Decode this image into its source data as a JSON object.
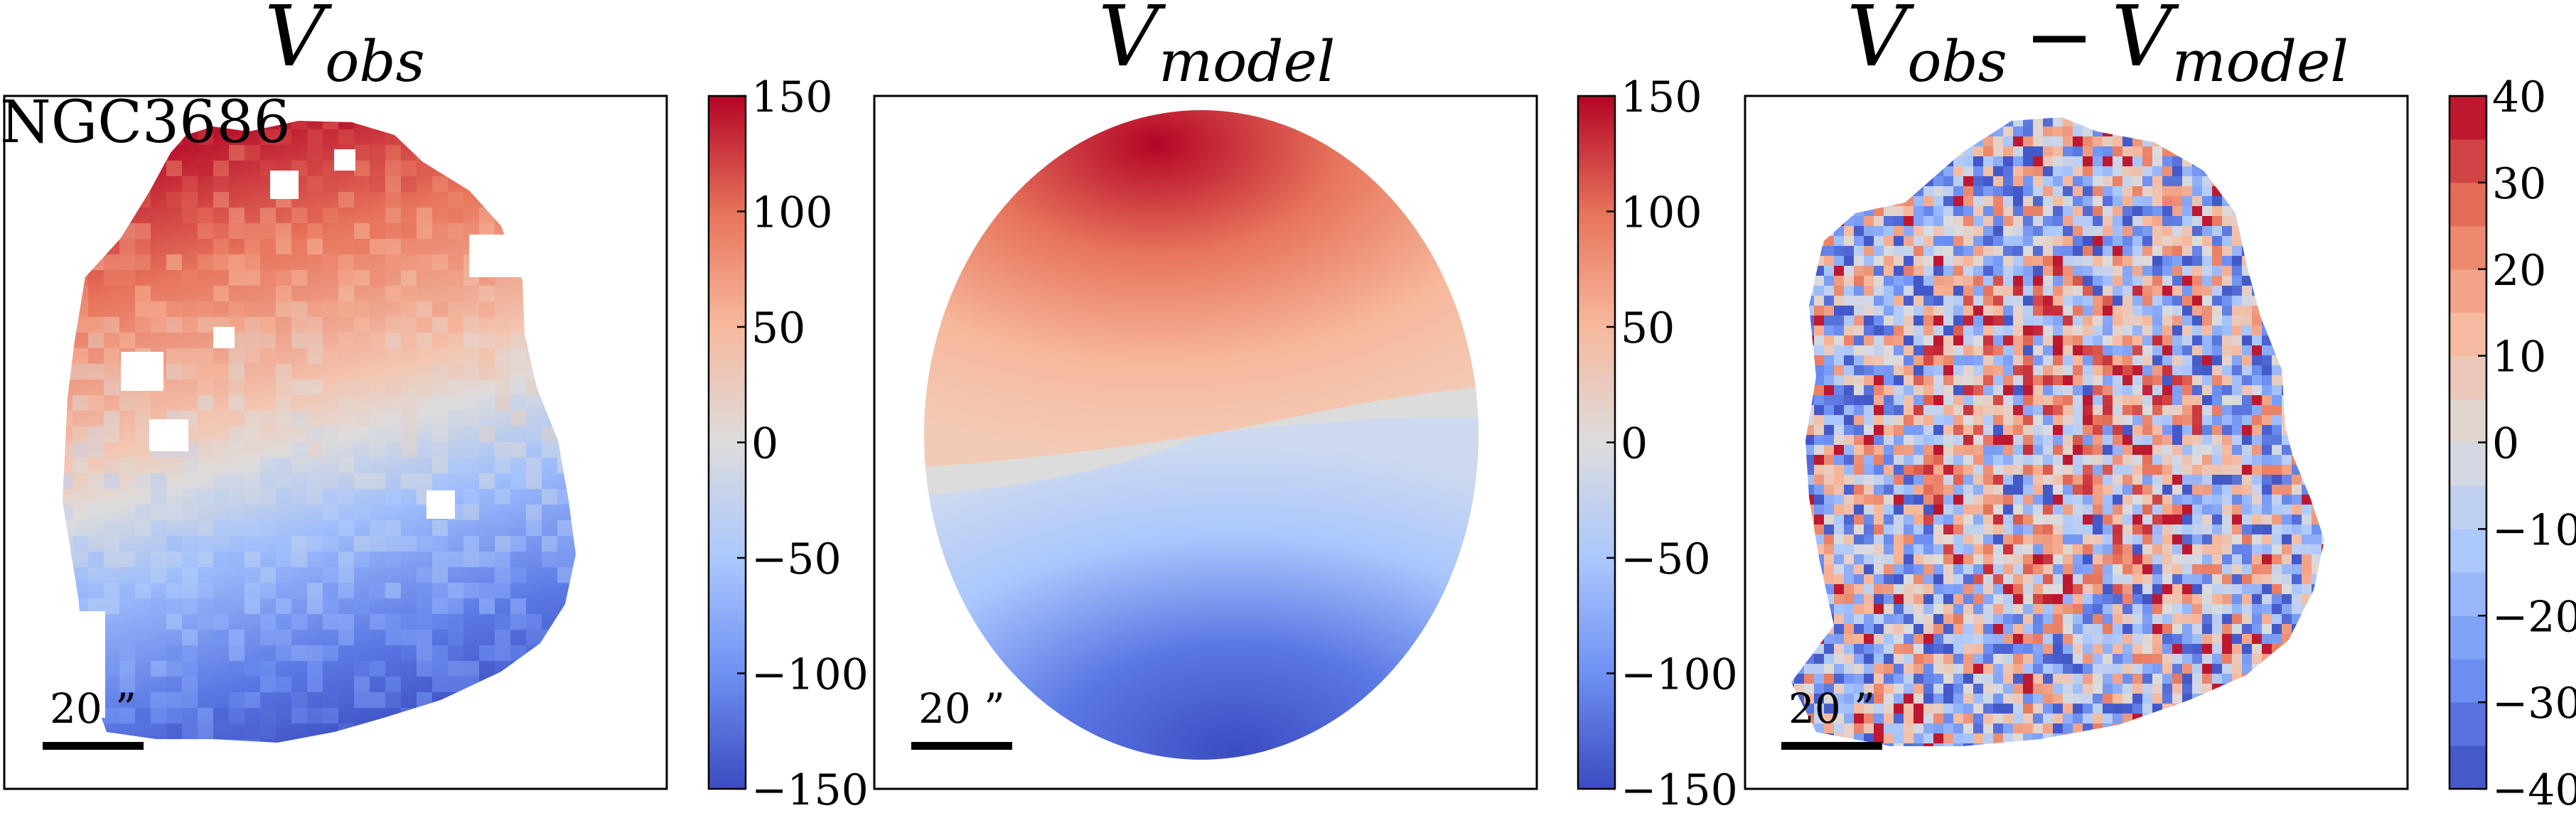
{
  "figure": {
    "galaxy_label": "NGC3686",
    "scale_bar_label": "20 ”"
  },
  "chart_data": [
    {
      "type": "heatmap",
      "title": {
        "main": "V",
        "sub": "obs"
      },
      "colorbar": {
        "min": -150,
        "max": 150,
        "style": "continuous",
        "ticks": [
          150,
          100,
          50,
          0,
          -50,
          -100,
          -150
        ],
        "tick_labels": [
          "150",
          "100",
          "50",
          "0",
          "−50",
          "−100",
          "−150"
        ]
      },
      "colormap": [
        "#3b4cc0",
        "#6f92f3",
        "#aac7fd",
        "#dddcdc",
        "#f7b89c",
        "#e7745b",
        "#b40426"
      ],
      "velocity_field": {
        "max_velocity": 150,
        "gradient": "positive toward top-left, negative toward bottom-right"
      }
    },
    {
      "type": "heatmap",
      "title": {
        "main": "V",
        "sub": "model"
      },
      "colorbar": {
        "min": -150,
        "max": 150,
        "style": "continuous",
        "ticks": [
          150,
          100,
          50,
          0,
          -50,
          -100,
          -150
        ],
        "tick_labels": [
          "150",
          "100",
          "50",
          "0",
          "−50",
          "−100",
          "−150"
        ]
      },
      "colormap": [
        "#3b4cc0",
        "#6f92f3",
        "#aac7fd",
        "#dddcdc",
        "#f7b89c",
        "#e7745b",
        "#b40426"
      ],
      "velocity_field": {
        "max_velocity": 150,
        "gradient": "smooth rotating disk"
      }
    },
    {
      "type": "heatmap",
      "title": {
        "main": "V",
        "sub": "obs",
        "op": "−",
        "main2": "V",
        "sub2": "model"
      },
      "colorbar": {
        "min": -40,
        "max": 40,
        "style": "discrete",
        "levels": 16,
        "ticks": [
          40,
          30,
          20,
          10,
          0,
          -10,
          -20,
          -30,
          -40
        ],
        "tick_labels": [
          "40",
          "30",
          "20",
          "10",
          "0",
          "−10",
          "−20",
          "−30",
          "−40"
        ]
      },
      "colormap": [
        "#3b4cc0",
        "#6f92f3",
        "#aac7fd",
        "#dddcdc",
        "#f7b89c",
        "#e7745b",
        "#b40426"
      ],
      "residual_field": {
        "range": [
          -40,
          40
        ],
        "pattern": "noisy residuals"
      }
    }
  ]
}
